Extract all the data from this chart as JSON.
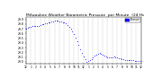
{
  "title": "Milwaukee Weather Barometric Pressure  per Minute  (24 Hours)",
  "ylim": [
    28.95,
    29.95
  ],
  "xlim": [
    0,
    1440
  ],
  "dot_color": "#0000ff",
  "dot_size": 0.3,
  "background_color": "#ffffff",
  "grid_color": "#888888",
  "title_fontsize": 3.2,
  "tick_fontsize": 2.2,
  "legend_color": "#0000ff",
  "x_ticks": [
    0,
    60,
    120,
    180,
    240,
    300,
    360,
    420,
    480,
    540,
    600,
    660,
    720,
    780,
    840,
    900,
    960,
    1020,
    1080,
    1140,
    1200,
    1260,
    1320,
    1380,
    1440
  ],
  "x_tick_labels": [
    "12",
    "1",
    "2",
    "3",
    "4",
    "5",
    "6",
    "7",
    "8",
    "9",
    "10",
    "11",
    "12",
    "1",
    "2",
    "3",
    "4",
    "5",
    "6",
    "7",
    "8",
    "9",
    "10",
    "11",
    "12"
  ],
  "y_ticks": [
    29.0,
    29.1,
    29.2,
    29.3,
    29.4,
    29.5,
    29.6,
    29.7,
    29.8,
    29.9
  ],
  "y_tick_labels": [
    "29.0",
    "29.1",
    "29.2",
    "29.3",
    "29.4",
    "29.5",
    "29.6",
    "29.7",
    "29.8",
    "29.9"
  ],
  "pressure_data": [
    [
      0,
      29.71
    ],
    [
      20,
      29.72
    ],
    [
      40,
      29.74
    ],
    [
      60,
      29.75
    ],
    [
      80,
      29.76
    ],
    [
      100,
      29.77
    ],
    [
      120,
      29.76
    ],
    [
      140,
      29.77
    ],
    [
      160,
      29.77
    ],
    [
      180,
      29.78
    ],
    [
      200,
      29.79
    ],
    [
      220,
      29.8
    ],
    [
      240,
      29.81
    ],
    [
      260,
      29.82
    ],
    [
      280,
      29.83
    ],
    [
      300,
      29.84
    ],
    [
      320,
      29.85
    ],
    [
      340,
      29.86
    ],
    [
      360,
      29.87
    ],
    [
      380,
      29.87
    ],
    [
      400,
      29.87
    ],
    [
      420,
      29.86
    ],
    [
      440,
      29.85
    ],
    [
      460,
      29.84
    ],
    [
      480,
      29.83
    ],
    [
      500,
      29.81
    ],
    [
      520,
      29.78
    ],
    [
      540,
      29.75
    ],
    [
      560,
      29.7
    ],
    [
      580,
      29.65
    ],
    [
      600,
      29.59
    ],
    [
      620,
      29.52
    ],
    [
      640,
      29.44
    ],
    [
      660,
      29.36
    ],
    [
      680,
      29.27
    ],
    [
      700,
      29.19
    ],
    [
      720,
      29.11
    ],
    [
      740,
      29.05
    ],
    [
      760,
      29.0
    ],
    [
      780,
      29.01
    ],
    [
      800,
      29.03
    ],
    [
      820,
      29.06
    ],
    [
      840,
      29.09
    ],
    [
      860,
      29.12
    ],
    [
      880,
      29.15
    ],
    [
      900,
      29.17
    ],
    [
      920,
      29.18
    ],
    [
      940,
      29.17
    ],
    [
      960,
      29.15
    ],
    [
      980,
      29.13
    ],
    [
      1000,
      29.11
    ],
    [
      1020,
      29.1
    ],
    [
      1040,
      29.09
    ],
    [
      1060,
      29.09
    ],
    [
      1080,
      29.1
    ],
    [
      1100,
      29.11
    ],
    [
      1120,
      29.1
    ],
    [
      1140,
      29.09
    ],
    [
      1160,
      29.08
    ],
    [
      1180,
      29.07
    ],
    [
      1200,
      29.06
    ],
    [
      1220,
      29.05
    ],
    [
      1240,
      29.04
    ],
    [
      1260,
      29.04
    ],
    [
      1280,
      29.04
    ],
    [
      1300,
      29.03
    ],
    [
      1320,
      29.03
    ],
    [
      1340,
      29.03
    ],
    [
      1360,
      29.02
    ],
    [
      1380,
      29.02
    ],
    [
      1400,
      29.02
    ],
    [
      1420,
      29.02
    ],
    [
      1440,
      29.01
    ]
  ]
}
